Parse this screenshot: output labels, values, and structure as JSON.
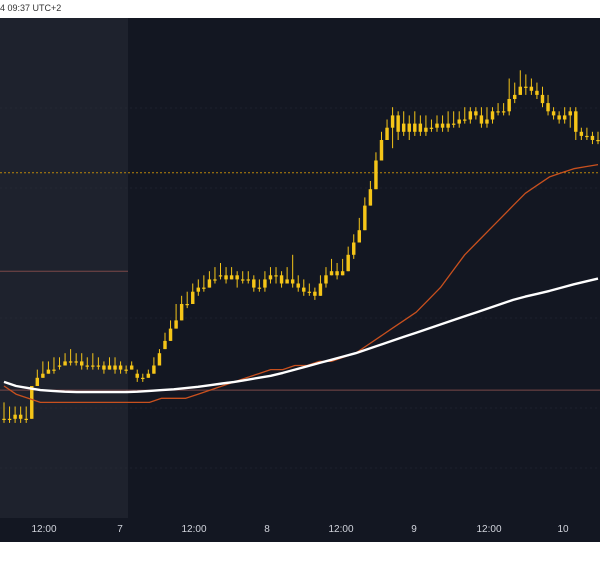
{
  "header": {
    "timestamp": "4 09:37 UTC+2"
  },
  "xaxis": {
    "labels": [
      "12:00",
      "7",
      "12:00",
      "8",
      "12:00",
      "9",
      "12:00",
      "10"
    ]
  },
  "colors": {
    "background": "#131722",
    "shaded_session": "#1e222d",
    "candle": "#f5c518",
    "ma_fast": "#c8501e",
    "ma_slow": "#ffffff",
    "dotted_level": "#b8860b",
    "hline": "#7a4848",
    "grid": "#2a2e39",
    "axis_text": "#d1d4dc"
  },
  "chart_data": {
    "type": "candlestick",
    "title": "",
    "xlabel": "",
    "ylabel": "",
    "x_tick_labels": [
      "12:00",
      "7",
      "12:00",
      "8",
      "12:00",
      "9",
      "12:00",
      "10"
    ],
    "ylim": [
      0,
      100
    ],
    "candles": [
      [
        12,
        12,
        16,
        11
      ],
      [
        12,
        12,
        15,
        11
      ],
      [
        12,
        13,
        15,
        11
      ],
      [
        12,
        13,
        15,
        11
      ],
      [
        12,
        12,
        15,
        11
      ],
      [
        12,
        20,
        20,
        12
      ],
      [
        20,
        22,
        24,
        20
      ],
      [
        22,
        23,
        26,
        22
      ],
      [
        23,
        24,
        26,
        23
      ],
      [
        24,
        24,
        27,
        23
      ],
      [
        25,
        25,
        27,
        24
      ],
      [
        25,
        26,
        28,
        25
      ],
      [
        26,
        26,
        29,
        25
      ],
      [
        26,
        26,
        28,
        25
      ],
      [
        26,
        25,
        28,
        24
      ],
      [
        25,
        25,
        27,
        24
      ],
      [
        25,
        25,
        28,
        24
      ],
      [
        25,
        25,
        27,
        24
      ],
      [
        25,
        24,
        26,
        23
      ],
      [
        24,
        25,
        27,
        24
      ],
      [
        24,
        25,
        27,
        23
      ],
      [
        25,
        24,
        26,
        23
      ],
      [
        24,
        24,
        25,
        23
      ],
      [
        24,
        25,
        26,
        24
      ],
      [
        23,
        22,
        24,
        21
      ],
      [
        22,
        22,
        23,
        21
      ],
      [
        22,
        23,
        24,
        22
      ],
      [
        23,
        25,
        27,
        23
      ],
      [
        25,
        28,
        29,
        25
      ],
      [
        29,
        31,
        33,
        29
      ],
      [
        31,
        34,
        36,
        31
      ],
      [
        34,
        36,
        40,
        34
      ],
      [
        36,
        40,
        42,
        36
      ],
      [
        40,
        40,
        43,
        39
      ],
      [
        40,
        43,
        45,
        40
      ],
      [
        43,
        44,
        46,
        42
      ],
      [
        44,
        44,
        47,
        43
      ],
      [
        44,
        46,
        48,
        44
      ],
      [
        46,
        46,
        49,
        45
      ],
      [
        47,
        47,
        50,
        46
      ],
      [
        47,
        46,
        49,
        45
      ],
      [
        46,
        47,
        49,
        46
      ],
      [
        47,
        46,
        48,
        44
      ],
      [
        46,
        46,
        48,
        45
      ],
      [
        46,
        46,
        48,
        45
      ],
      [
        46,
        44,
        47,
        43
      ],
      [
        44,
        44,
        46,
        43
      ],
      [
        44,
        46,
        48,
        43
      ],
      [
        46,
        47,
        49,
        45
      ],
      [
        47,
        47,
        49,
        45
      ],
      [
        47,
        45,
        48,
        44
      ],
      [
        45,
        46,
        49,
        45
      ],
      [
        46,
        45,
        52,
        44
      ],
      [
        45,
        44,
        47,
        43
      ],
      [
        44,
        43,
        46,
        42
      ],
      [
        43,
        43,
        45,
        42
      ],
      [
        43,
        42,
        44,
        41
      ],
      [
        42,
        45,
        47,
        42
      ],
      [
        45,
        47,
        49,
        44
      ],
      [
        47,
        48,
        51,
        47
      ],
      [
        48,
        47,
        50,
        46
      ],
      [
        47,
        48,
        51,
        47
      ],
      [
        48,
        52,
        54,
        48
      ],
      [
        52,
        55,
        57,
        51
      ],
      [
        55,
        58,
        61,
        55
      ],
      [
        58,
        64,
        66,
        58
      ],
      [
        64,
        68,
        70,
        64
      ],
      [
        68,
        75,
        77,
        68
      ],
      [
        75,
        80,
        82,
        75
      ],
      [
        80,
        83,
        85,
        80
      ],
      [
        83,
        86,
        88,
        78
      ],
      [
        86,
        82,
        87,
        80
      ],
      [
        82,
        84,
        87,
        81
      ],
      [
        84,
        82,
        86,
        80
      ],
      [
        82,
        84,
        87,
        81
      ],
      [
        84,
        82,
        86,
        81
      ],
      [
        82,
        83,
        86,
        81
      ],
      [
        83,
        83,
        85,
        82
      ],
      [
        83,
        84,
        86,
        82
      ],
      [
        84,
        83,
        86,
        82
      ],
      [
        83,
        84,
        87,
        82
      ],
      [
        84,
        84,
        87,
        83
      ],
      [
        84,
        85,
        87,
        83
      ],
      [
        85,
        85,
        88,
        84
      ],
      [
        85,
        87,
        88,
        84
      ],
      [
        87,
        86,
        88,
        85
      ],
      [
        86,
        84,
        88,
        83
      ],
      [
        84,
        85,
        88,
        83
      ],
      [
        85,
        87,
        88,
        84
      ],
      [
        87,
        87,
        89,
        86
      ],
      [
        87,
        87,
        89,
        86
      ],
      [
        87,
        90,
        95,
        86
      ],
      [
        90,
        91,
        94,
        89
      ],
      [
        91,
        93,
        97,
        91
      ],
      [
        93,
        93,
        96,
        91
      ],
      [
        93,
        92,
        95,
        91
      ],
      [
        92,
        91,
        94,
        90
      ],
      [
        91,
        89,
        93,
        88
      ],
      [
        89,
        87,
        91,
        86
      ],
      [
        87,
        86,
        88,
        85
      ],
      [
        86,
        85,
        87,
        84
      ],
      [
        85,
        86,
        88,
        84
      ],
      [
        86,
        87,
        88,
        83
      ],
      [
        87,
        82,
        88,
        80
      ],
      [
        82,
        81,
        83,
        80
      ],
      [
        81,
        81,
        83,
        80
      ],
      [
        81,
        80,
        82,
        79
      ],
      [
        80,
        80,
        82,
        79
      ]
    ],
    "series": [
      {
        "values": [
          20,
          18,
          17,
          16,
          16,
          16,
          16,
          16,
          16,
          16,
          16,
          16,
          16,
          17,
          17,
          17,
          18,
          19,
          20,
          21,
          22,
          23,
          24,
          24,
          25,
          25,
          26,
          26,
          27,
          28,
          30,
          32,
          34,
          36,
          38,
          41,
          44,
          48,
          52,
          55,
          58,
          61,
          64,
          67,
          69,
          71,
          72,
          73,
          73.5,
          74
        ]
      },
      {
        "values": [
          21,
          20,
          19.5,
          19,
          18.8,
          18.6,
          18.5,
          18.5,
          18.5,
          18.5,
          18.5,
          18.6,
          18.8,
          19,
          19.2,
          19.5,
          19.8,
          20.2,
          20.6,
          21,
          21.5,
          22,
          22.5,
          23.2,
          24,
          24.8,
          25.6,
          26.4,
          27.2,
          28,
          29,
          30,
          31,
          32,
          33,
          34,
          35,
          36,
          37,
          38,
          39,
          40,
          41,
          41.8,
          42.5,
          43.2,
          44,
          44.8,
          45.5,
          46.2
        ]
      }
    ],
    "levels": [
      72,
      19,
      48
    ],
    "grid": true
  }
}
